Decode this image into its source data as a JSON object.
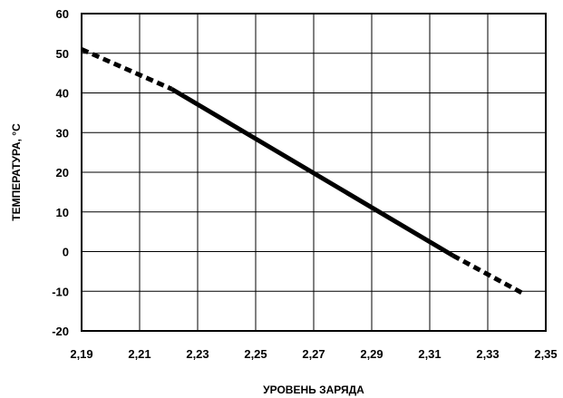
{
  "chart_data": {
    "type": "line",
    "xlabel": "УРОВЕНЬ ЗАРЯДА",
    "ylabel": "ТЕМПЕРАТУРА, °C",
    "xlim": [
      2.19,
      2.35
    ],
    "ylim": [
      -20,
      60
    ],
    "x_ticks": [
      2.19,
      2.21,
      2.23,
      2.25,
      2.27,
      2.29,
      2.31,
      2.33,
      2.35
    ],
    "x_tick_labels": [
      "2,19",
      "2,21",
      "2,23",
      "2,25",
      "2,27",
      "2,29",
      "2,31",
      "2,33",
      "2,35"
    ],
    "y_ticks": [
      -20,
      -10,
      0,
      10,
      20,
      30,
      40,
      50,
      60
    ],
    "y_tick_labels": [
      "-20",
      "-10",
      "0",
      "10",
      "20",
      "30",
      "40",
      "50",
      "60"
    ],
    "grid": true,
    "series": [
      {
        "style": "dashed",
        "x": [
          2.19,
          2.221
        ],
        "y": [
          51,
          41
        ]
      },
      {
        "style": "solid",
        "x": [
          2.221,
          2.318
        ],
        "y": [
          41,
          -1
        ]
      },
      {
        "style": "dashed",
        "x": [
          2.318,
          2.342
        ],
        "y": [
          -1,
          -10.5
        ]
      }
    ],
    "line_color": "#000000"
  }
}
